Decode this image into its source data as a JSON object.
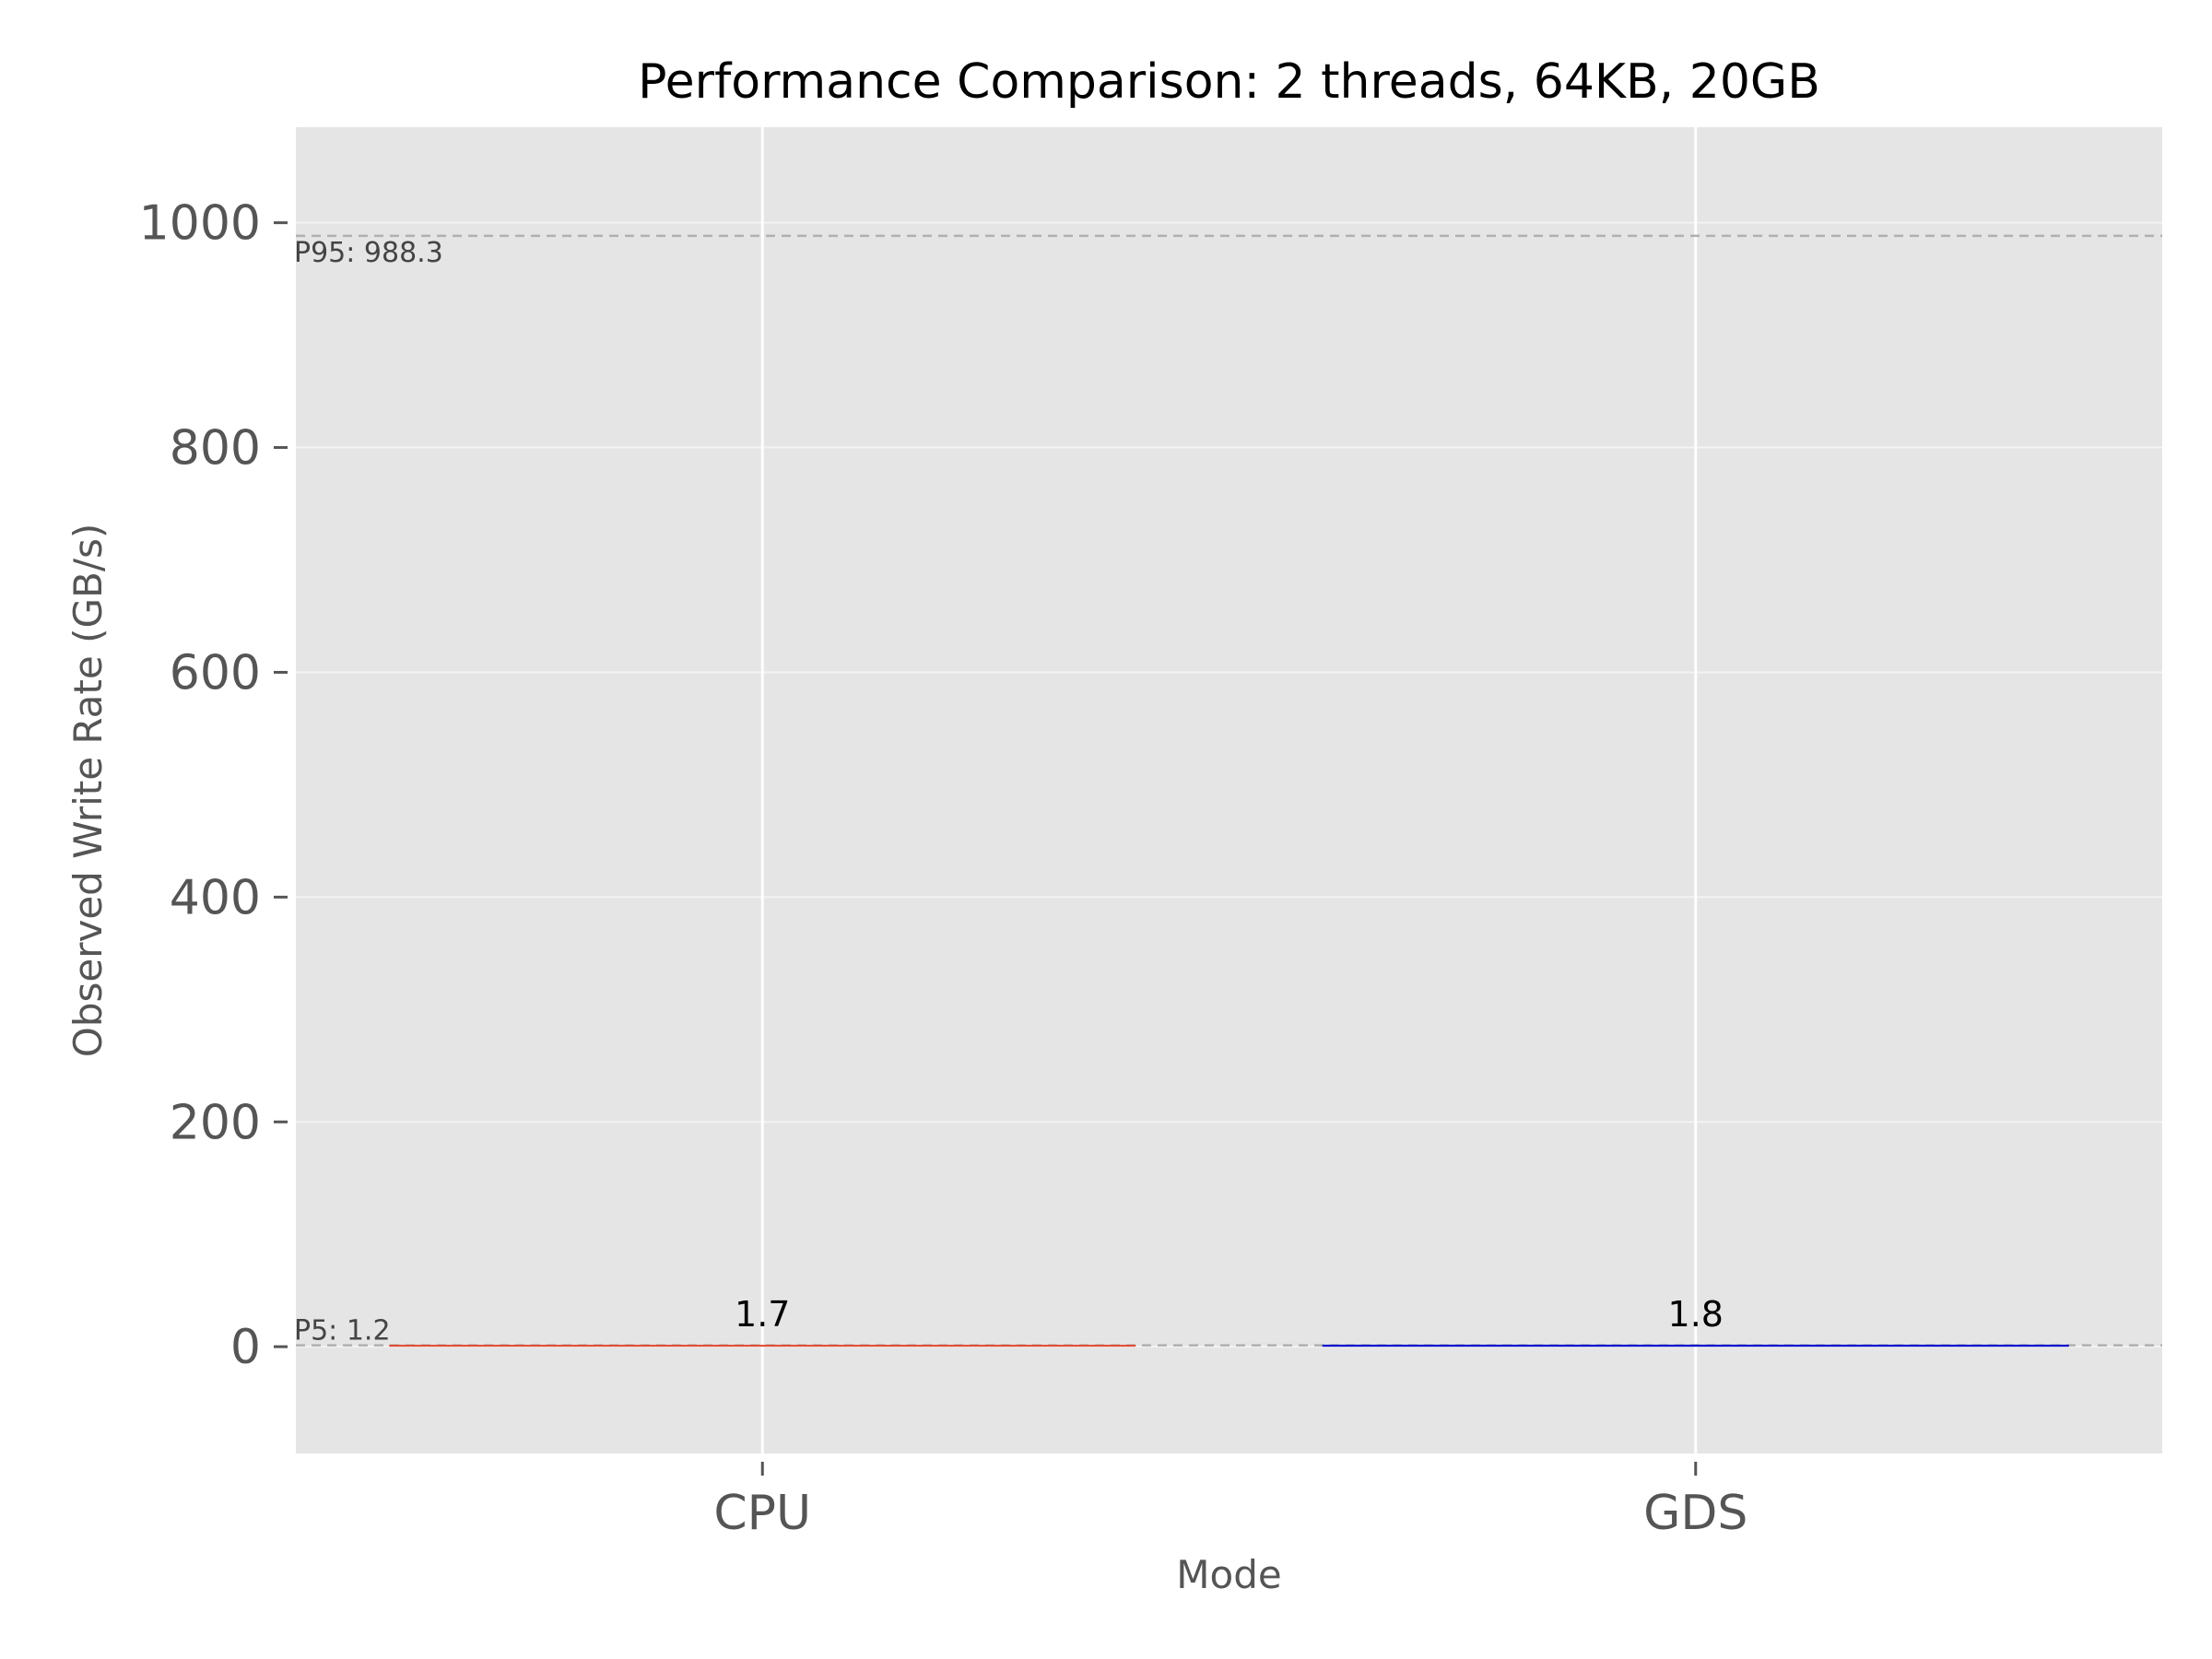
{
  "chart_data": {
    "type": "bar",
    "title": "Performance Comparison: 2 threads, 64KB, 20GB",
    "xlabel": "Mode",
    "ylabel": "Observed Write Rate (GB/s)",
    "categories": [
      "CPU",
      "GDS"
    ],
    "values": [
      1.7,
      1.8
    ],
    "value_labels": [
      "1.7",
      "1.8"
    ],
    "bar_colors": [
      "#e24a33",
      "#0000cc"
    ],
    "ylim": [
      -95,
      1085
    ],
    "yticks": [
      0,
      200,
      400,
      600,
      800,
      1000
    ],
    "ytick_labels": [
      "0",
      "200",
      "400",
      "600",
      "800",
      "1000"
    ],
    "grid": true,
    "reference_lines": [
      {
        "label": "P95: 988.3",
        "value": 988.3
      },
      {
        "label": "P5: 1.2",
        "value": 1.2
      }
    ]
  },
  "colors": {
    "plot_background": "#e5e5e5",
    "grid": "#ffffff",
    "reference_line": "#b0b0b0",
    "tick": "#555555"
  }
}
